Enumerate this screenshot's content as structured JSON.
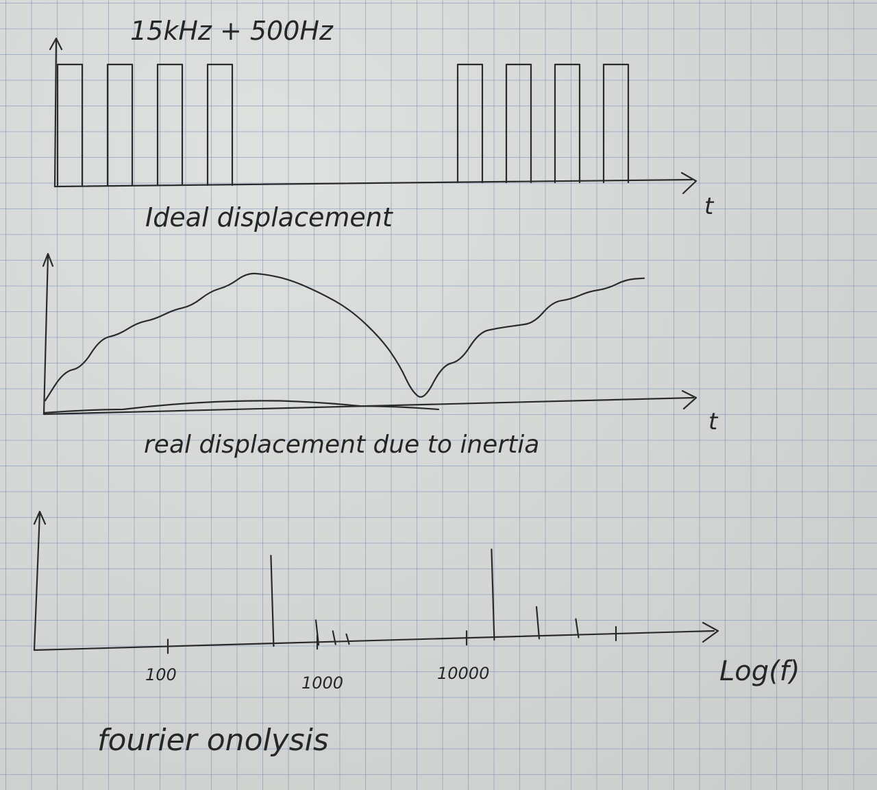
{
  "chart_data": [
    {
      "type": "line",
      "title": "15kHz + 500Hz",
      "caption": "Ideal displacement",
      "xlabel": "t",
      "ylabel": "",
      "pulse_groups": [
        {
          "pulses": 4
        },
        {
          "pulses": 4
        }
      ],
      "pulse_level": 1,
      "grid": true
    },
    {
      "type": "line",
      "caption": "real displacement due to inertia",
      "xlabel": "t",
      "ylabel": "",
      "x": [
        0,
        0.03,
        0.06,
        0.09,
        0.12,
        0.15,
        0.18,
        0.21,
        0.24,
        0.27,
        0.3,
        0.33,
        0.36,
        0.4,
        0.45,
        0.5,
        0.55,
        0.58,
        0.6,
        0.62,
        0.65,
        0.68,
        0.71,
        0.74,
        0.77,
        0.8,
        0.83,
        0.86,
        0.89,
        0.92,
        0.95,
        0.98
      ],
      "series": [
        {
          "values": [
            0.03,
            0.25,
            0.28,
            0.5,
            0.53,
            0.62,
            0.65,
            0.72,
            0.75,
            0.86,
            0.9,
            1.0,
            0.99,
            0.95,
            0.85,
            0.72,
            0.5,
            0.3,
            0.1,
            0.03,
            0.3,
            0.33,
            0.55,
            0.58,
            0.6,
            0.62,
            0.78,
            0.8,
            0.86,
            0.88,
            0.95,
            0.96
          ]
        }
      ],
      "baseline_curve": [
        0.0,
        0.02,
        0.06,
        0.07,
        0.04,
        0.02
      ],
      "grid": true
    },
    {
      "type": "bar",
      "caption": "fourier onolysis",
      "xlabel": "Log(f)",
      "ylabel": "",
      "x_scale": "log",
      "tick_labels": [
        "100",
        "1000",
        "10000"
      ],
      "tick_values": [
        100,
        1000,
        10000
      ],
      "spikes": [
        {
          "f": 500,
          "amp": 1.0,
          "emphasis": "main"
        },
        {
          "f": 1000,
          "amp": 0.25
        },
        {
          "f": 1300,
          "amp": 0.12
        },
        {
          "f": 1600,
          "amp": 0.08
        },
        {
          "f": 15000,
          "amp": 1.0,
          "emphasis": "main"
        },
        {
          "f": 30000,
          "amp": 0.33
        },
        {
          "f": 55000,
          "amp": 0.18
        }
      ],
      "grid": true
    }
  ]
}
